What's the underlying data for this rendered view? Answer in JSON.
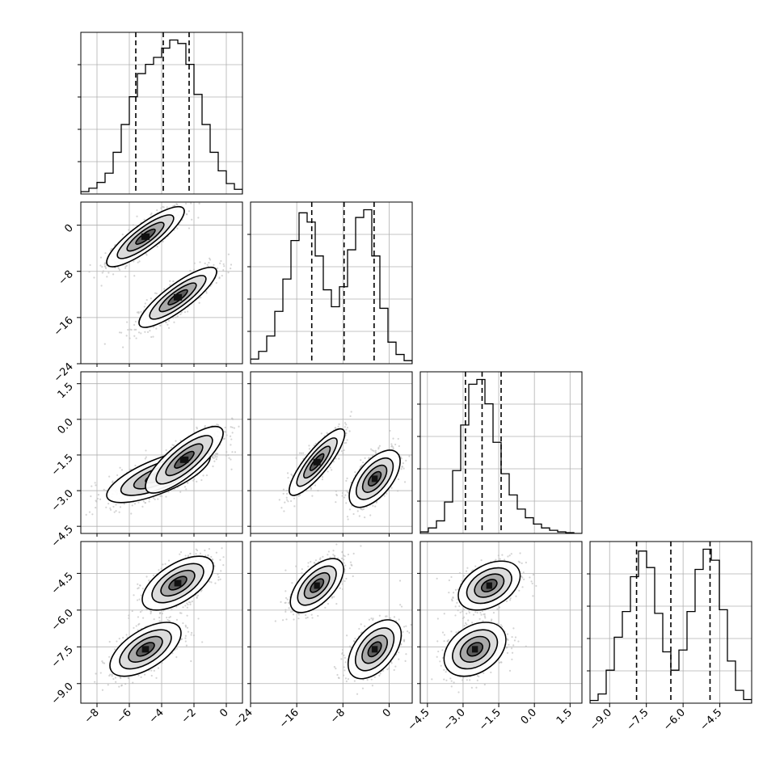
{
  "chart_data": {
    "type": "corner",
    "n_params": 4,
    "axes": [
      {
        "range": [
          -9,
          1
        ],
        "ticks": [
          -8,
          -6,
          -4,
          -2,
          0
        ],
        "tick_labels": [
          "−8",
          "−6",
          "−4",
          "−2",
          "0"
        ]
      },
      {
        "range": [
          -24,
          4
        ],
        "ticks": [
          -24,
          -16,
          -8,
          0
        ],
        "tick_labels": [
          "−24",
          "−16",
          "−8",
          "0"
        ]
      },
      {
        "range": [
          -4.8,
          2.0
        ],
        "ticks": [
          -4.5,
          -3.0,
          -1.5,
          0.0,
          1.5
        ],
        "tick_labels": [
          "−4.5",
          "−3.0",
          "−1.5",
          "0.0",
          "1.5"
        ]
      },
      {
        "range": [
          -9.8,
          -3.2
        ],
        "ticks": [
          -9.0,
          -7.5,
          -6.0,
          -4.5
        ],
        "tick_labels": [
          "−9.0",
          "−7.5",
          "−6.0",
          "−4.5"
        ]
      }
    ],
    "histograms": [
      {
        "param": 0,
        "quantiles": [
          -5.6,
          -3.9,
          -2.3
        ],
        "edges": [
          -9.0,
          -8.5,
          -8.0,
          -7.5,
          -7.0,
          -6.5,
          -6.0,
          -5.5,
          -5.0,
          -4.5,
          -4.0,
          -3.5,
          -3.0,
          -2.5,
          -2.0,
          -1.5,
          -1.0,
          -0.5,
          0.0,
          0.5,
          1.0
        ],
        "counts": [
          2,
          5,
          10,
          18,
          36,
          60,
          84,
          104,
          112,
          118,
          126,
          133,
          130,
          112,
          86,
          60,
          36,
          20,
          9,
          4
        ]
      },
      {
        "param": 1,
        "quantiles": [
          -13.4,
          -7.8,
          -2.6
        ],
        "edges": [
          -24,
          -22.6,
          -21.2,
          -19.8,
          -18.4,
          -17.0,
          -15.6,
          -14.2,
          -12.8,
          -11.4,
          -10.0,
          -8.6,
          -7.2,
          -5.8,
          -4.4,
          -3.0,
          -1.6,
          -0.2,
          1.2,
          2.6,
          4.0
        ],
        "counts": [
          3,
          8,
          18,
          34,
          55,
          80,
          98,
          92,
          70,
          48,
          37,
          50,
          74,
          95,
          100,
          70,
          36,
          14,
          6,
          2
        ]
      },
      {
        "param": 2,
        "quantiles": [
          -2.9,
          -2.2,
          -1.4
        ],
        "edges": [
          -4.8,
          -4.46,
          -4.12,
          -3.78,
          -3.44,
          -3.1,
          -2.76,
          -2.42,
          -2.08,
          -1.74,
          -1.4,
          -1.06,
          -0.72,
          -0.38,
          -0.04,
          0.3,
          0.64,
          0.98,
          1.32,
          1.66,
          2.0
        ],
        "counts": [
          2,
          7,
          16,
          40,
          80,
          138,
          190,
          196,
          165,
          116,
          76,
          49,
          31,
          20,
          12,
          7,
          4,
          2,
          1,
          0
        ]
      },
      {
        "param": 3,
        "quantiles": [
          -7.9,
          -6.5,
          -4.9
        ],
        "edges": [
          -9.8,
          -9.47,
          -9.14,
          -8.81,
          -8.48,
          -8.15,
          -7.82,
          -7.49,
          -7.16,
          -6.83,
          -6.5,
          -6.17,
          -5.84,
          -5.51,
          -5.18,
          -4.85,
          -4.52,
          -4.19,
          -3.86,
          -3.53,
          -3.2
        ],
        "counts": [
          3,
          10,
          36,
          72,
          100,
          138,
          166,
          148,
          98,
          56,
          36,
          58,
          100,
          146,
          168,
          156,
          102,
          46,
          14,
          4
        ]
      }
    ],
    "scatter_panels": [
      {
        "x": 0,
        "y": 1,
        "clusters": [
          {
            "mean": [
              -5.0,
              -2.0
            ],
            "sd": [
              1.2,
              2.6
            ],
            "corr": 0.85,
            "weight": 0.5
          },
          {
            "mean": [
              -3.0,
              -12.5
            ],
            "sd": [
              1.2,
              2.6
            ],
            "corr": 0.85,
            "weight": 0.5
          }
        ]
      },
      {
        "x": 0,
        "y": 2,
        "clusters": [
          {
            "mean": [
              -4.2,
              -2.4
            ],
            "sd": [
              1.6,
              0.55
            ],
            "corr": 0.72,
            "weight": 0.55
          },
          {
            "mean": [
              -2.6,
              -1.7
            ],
            "sd": [
              1.2,
              0.7
            ],
            "corr": 0.8,
            "weight": 0.45
          }
        ]
      },
      {
        "x": 0,
        "y": 3,
        "clusters": [
          {
            "mean": [
              -5.0,
              -7.6
            ],
            "sd": [
              1.1,
              0.55
            ],
            "corr": 0.6,
            "weight": 0.5
          },
          {
            "mean": [
              -3.0,
              -4.9
            ],
            "sd": [
              1.1,
              0.55
            ],
            "corr": 0.6,
            "weight": 0.5
          }
        ]
      },
      {
        "x": 1,
        "y": 2,
        "clusters": [
          {
            "mean": [
              -12.5,
              -1.8
            ],
            "sd": [
              2.4,
              0.7
            ],
            "corr": 0.85,
            "weight": 0.5
          },
          {
            "mean": [
              -2.5,
              -2.5
            ],
            "sd": [
              2.2,
              0.6
            ],
            "corr": 0.6,
            "weight": 0.5
          }
        ]
      },
      {
        "x": 1,
        "y": 3,
        "clusters": [
          {
            "mean": [
              -12.5,
              -5.0
            ],
            "sd": [
              2.3,
              0.55
            ],
            "corr": 0.6,
            "weight": 0.5
          },
          {
            "mean": [
              -2.5,
              -7.6
            ],
            "sd": [
              2.3,
              0.6
            ],
            "corr": 0.5,
            "weight": 0.5
          }
        ]
      },
      {
        "x": 2,
        "y": 3,
        "clusters": [
          {
            "mean": [
              -1.9,
              -5.0
            ],
            "sd": [
              0.65,
              0.5
            ],
            "corr": 0.4,
            "weight": 0.5
          },
          {
            "mean": [
              -2.5,
              -7.6
            ],
            "sd": [
              0.65,
              0.55
            ],
            "corr": 0.35,
            "weight": 0.5
          }
        ]
      }
    ],
    "grid": true,
    "colors": {
      "line": "#000000",
      "points": "#bdbdbd",
      "grid": "#b0b0b0"
    }
  }
}
